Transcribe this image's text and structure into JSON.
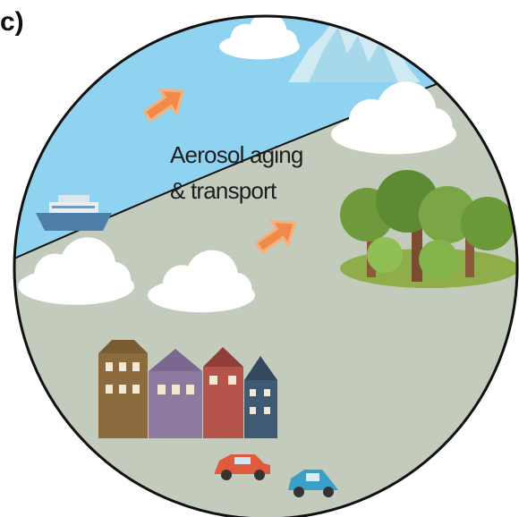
{
  "panel_label": "c)",
  "caption": {
    "line1": "Aerosol aging",
    "line2": "& transport"
  }
}
